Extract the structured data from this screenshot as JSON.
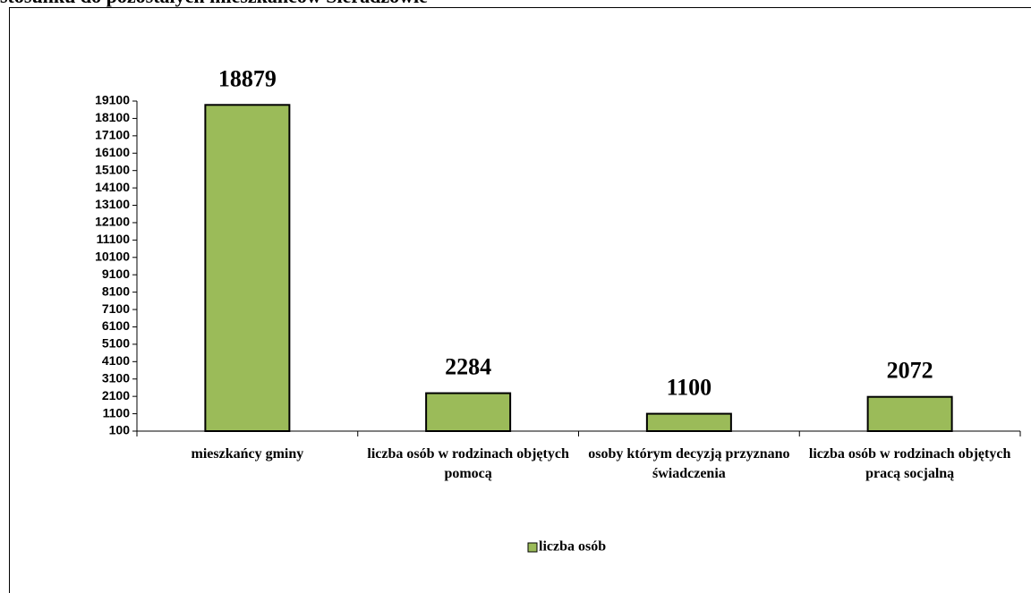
{
  "chart_data": {
    "type": "bar",
    "title": "stosunku do pozostałych mieszkańców Sieradzowie",
    "categories": [
      "mieszkańcy gminy",
      "liczba osób w rodzinach objętych pomocą",
      "osoby którym decyzją przyznano świadczenia",
      "liczba osób w rodzinach objętych pracą socjalną"
    ],
    "series": [
      {
        "name": "liczba osób",
        "color": "#9bbb59",
        "values": [
          18879,
          2284,
          1100,
          2072
        ]
      }
    ],
    "ylim": [
      100,
      19100
    ],
    "yticks": [
      100,
      1100,
      2100,
      3100,
      4100,
      5100,
      6100,
      7100,
      8100,
      9100,
      10100,
      11100,
      12100,
      13100,
      14100,
      15100,
      16100,
      17100,
      18100,
      19100
    ],
    "grid": false,
    "legend": "bottom"
  }
}
